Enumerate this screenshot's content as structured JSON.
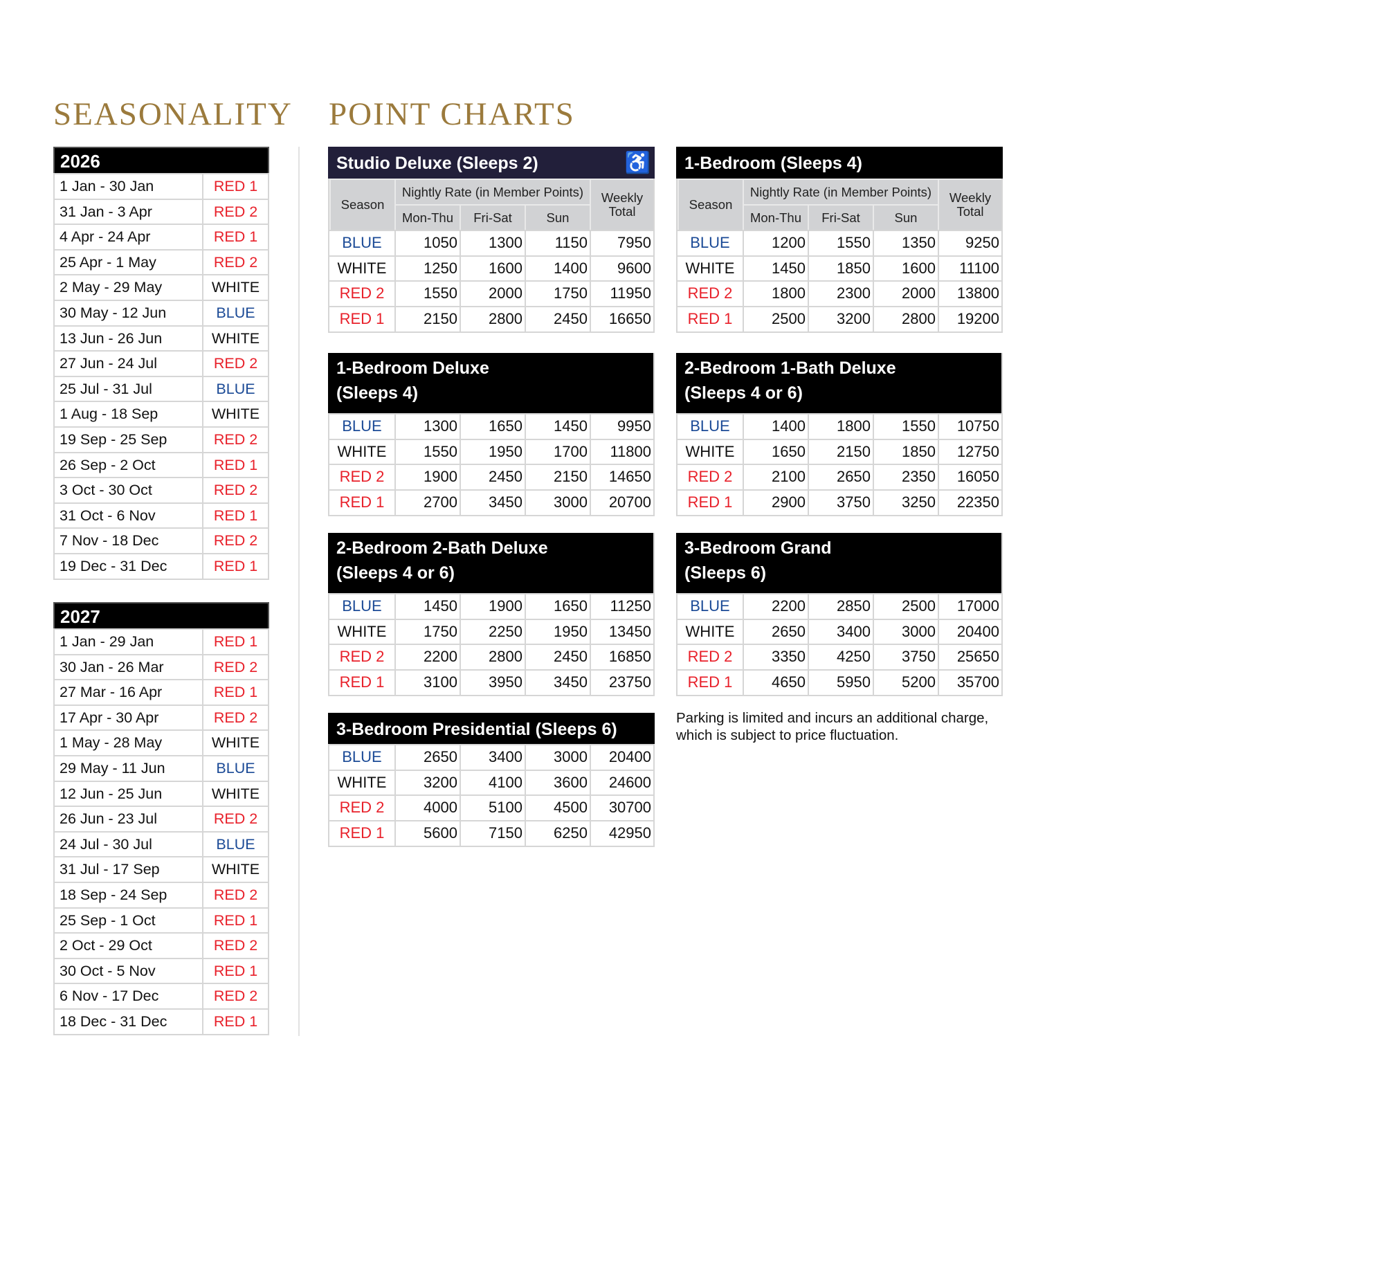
{
  "titles": {
    "seasonality": "SEASONALITY",
    "point_charts": "POINT CHARTS"
  },
  "colors": {
    "gold": "#9b7a3c",
    "blue": "#1b4a96",
    "red": "#e8202a",
    "header_gray": "#d1d2d4"
  },
  "seasonality": [
    {
      "year": "2026",
      "rows": [
        [
          "1 Jan - 30 Jan",
          "RED 1"
        ],
        [
          "31 Jan - 3 Apr",
          "RED 2"
        ],
        [
          "4 Apr - 24 Apr",
          "RED 1"
        ],
        [
          "25 Apr - 1 May",
          "RED 2"
        ],
        [
          "2 May - 29 May",
          "WHITE"
        ],
        [
          "30 May - 12 Jun",
          "BLUE"
        ],
        [
          "13 Jun - 26 Jun",
          "WHITE"
        ],
        [
          "27 Jun - 24 Jul",
          "RED 2"
        ],
        [
          "25 Jul - 31 Jul",
          "BLUE"
        ],
        [
          "1 Aug - 18 Sep",
          "WHITE"
        ],
        [
          "19 Sep - 25 Sep",
          "RED 2"
        ],
        [
          "26 Sep - 2 Oct",
          "RED 1"
        ],
        [
          "3 Oct - 30 Oct",
          "RED 2"
        ],
        [
          "31 Oct - 6 Nov",
          "RED 1"
        ],
        [
          "7 Nov - 18 Dec",
          "RED 2"
        ],
        [
          "19 Dec - 31 Dec",
          "RED 1"
        ]
      ]
    },
    {
      "year": "2027",
      "rows": [
        [
          "1 Jan - 29 Jan",
          "RED 1"
        ],
        [
          "30 Jan - 26 Mar",
          "RED 2"
        ],
        [
          "27 Mar - 16 Apr",
          "RED 1"
        ],
        [
          "17 Apr - 30 Apr",
          "RED 2"
        ],
        [
          "1 May - 28 May",
          "WHITE"
        ],
        [
          "29 May - 11 Jun",
          "BLUE"
        ],
        [
          "12 Jun - 25 Jun",
          "WHITE"
        ],
        [
          "26 Jun - 23 Jul",
          "RED 2"
        ],
        [
          "24 Jul - 30 Jul",
          "BLUE"
        ],
        [
          "31 Jul - 17 Sep",
          "WHITE"
        ],
        [
          "18 Sep - 24 Sep",
          "RED 2"
        ],
        [
          "25 Sep - 1 Oct",
          "RED 1"
        ],
        [
          "2 Oct - 29 Oct",
          "RED 2"
        ],
        [
          "30 Oct - 5 Nov",
          "RED 1"
        ],
        [
          "6 Nov - 17 Dec",
          "RED 2"
        ],
        [
          "18 Dec - 31 Dec",
          "RED 1"
        ]
      ]
    }
  ],
  "column_headers": {
    "season": "Season",
    "nightly": "Nightly Rate (in Member Points)",
    "mon_thu": "Mon-Thu",
    "fri_sat": "Fri-Sat",
    "sun": "Sun",
    "weekly": "Weekly Total"
  },
  "point_charts": [
    {
      "title": "Studio Deluxe (Sleeps 2)",
      "accessible_icon": "wheelchair-icon",
      "rows": [
        [
          "BLUE",
          "1050",
          "1300",
          "1150",
          "7950"
        ],
        [
          "WHITE",
          "1250",
          "1600",
          "1400",
          "9600"
        ],
        [
          "RED 2",
          "1550",
          "2000",
          "1750",
          "11950"
        ],
        [
          "RED 1",
          "2150",
          "2800",
          "2450",
          "16650"
        ]
      ]
    },
    {
      "title": "1-Bedroom (Sleeps 4)",
      "rows": [
        [
          "BLUE",
          "1200",
          "1550",
          "1350",
          "9250"
        ],
        [
          "WHITE",
          "1450",
          "1850",
          "1600",
          "11100"
        ],
        [
          "RED 2",
          "1800",
          "2300",
          "2000",
          "13800"
        ],
        [
          "RED 1",
          "2500",
          "3200",
          "2800",
          "19200"
        ]
      ]
    },
    {
      "title": "1-Bedroom Deluxe (Sleeps 4)",
      "rows": [
        [
          "BLUE",
          "1300",
          "1650",
          "1450",
          "9950"
        ],
        [
          "WHITE",
          "1550",
          "1950",
          "1700",
          "11800"
        ],
        [
          "RED 2",
          "1900",
          "2450",
          "2150",
          "14650"
        ],
        [
          "RED 1",
          "2700",
          "3450",
          "3000",
          "20700"
        ]
      ]
    },
    {
      "title": "2-Bedroom 1-Bath Deluxe (Sleeps 4 or 6)",
      "rows": [
        [
          "BLUE",
          "1400",
          "1800",
          "1550",
          "10750"
        ],
        [
          "WHITE",
          "1650",
          "2150",
          "1850",
          "12750"
        ],
        [
          "RED 2",
          "2100",
          "2650",
          "2350",
          "16050"
        ],
        [
          "RED 1",
          "2900",
          "3750",
          "3250",
          "22350"
        ]
      ]
    },
    {
      "title": "2-Bedroom 2-Bath Deluxe (Sleeps 4 or 6)",
      "rows": [
        [
          "BLUE",
          "1450",
          "1900",
          "1650",
          "11250"
        ],
        [
          "WHITE",
          "1750",
          "2250",
          "1950",
          "13450"
        ],
        [
          "RED 2",
          "2200",
          "2800",
          "2450",
          "16850"
        ],
        [
          "RED 1",
          "3100",
          "3950",
          "3450",
          "23750"
        ]
      ]
    },
    {
      "title": "3-Bedroom Grand (Sleeps 6)",
      "rows": [
        [
          "BLUE",
          "2200",
          "2850",
          "2500",
          "17000"
        ],
        [
          "WHITE",
          "2650",
          "3400",
          "3000",
          "20400"
        ],
        [
          "RED 2",
          "3350",
          "4250",
          "3750",
          "25650"
        ],
        [
          "RED 1",
          "4650",
          "5950",
          "5200",
          "35700"
        ]
      ]
    },
    {
      "title": "3-Bedroom Presidential (Sleeps 6)",
      "rows": [
        [
          "BLUE",
          "2650",
          "3400",
          "3000",
          "20400"
        ],
        [
          "WHITE",
          "3200",
          "4100",
          "3600",
          "24600"
        ],
        [
          "RED 2",
          "4000",
          "5100",
          "4500",
          "30700"
        ],
        [
          "RED 1",
          "5600",
          "7150",
          "6250",
          "42950"
        ]
      ]
    }
  ],
  "parking_note": "Parking is limited and incurs an additional charge, which is subject to price fluctuation."
}
